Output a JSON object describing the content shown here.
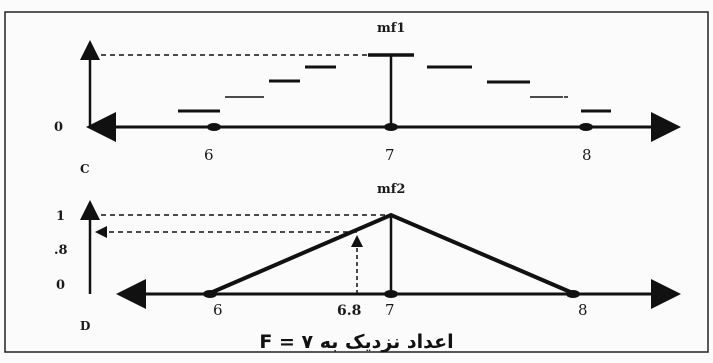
{
  "top_panel": {
    "peak_label": "mf1",
    "zero_label": "0",
    "panel_label": "C",
    "ticks": [
      "6",
      "7",
      "8"
    ]
  },
  "bottom_panel": {
    "peak_label": "mf2",
    "y_labels": [
      "1",
      ".8",
      "0"
    ],
    "panel_label": "D",
    "ticks": [
      "6",
      "6.8",
      "7",
      "8"
    ]
  },
  "caption": "F = اعداد نزدیک به ۷",
  "colors": {
    "ink": "#111111",
    "background": "#fbfbfb"
  }
}
